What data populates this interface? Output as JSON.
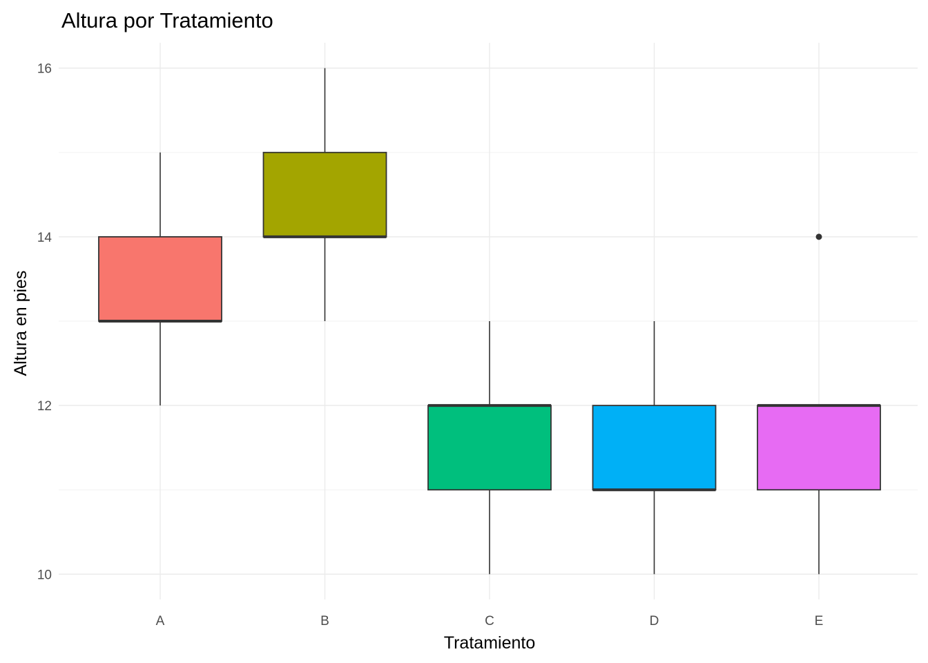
{
  "chart_data": {
    "type": "box",
    "title": "Altura por Tratamiento",
    "xlabel": "Tratamiento",
    "ylabel": "Altura en pies",
    "ylim": [
      9.7,
      16.3
    ],
    "y_ticks": [
      "10",
      "12",
      "14",
      "16"
    ],
    "grid": true,
    "legend": "none",
    "categories": [
      "A",
      "B",
      "C",
      "D",
      "E"
    ],
    "boxes": [
      {
        "category": "A",
        "min": 12,
        "q1": 13,
        "median": 13,
        "q3": 14,
        "max": 15,
        "outliers": [],
        "color": "#F8766D"
      },
      {
        "category": "B",
        "min": 13,
        "q1": 14,
        "median": 14,
        "q3": 15,
        "max": 16,
        "outliers": [],
        "color": "#A3A500"
      },
      {
        "category": "C",
        "min": 10,
        "q1": 11,
        "median": 12,
        "q3": 12,
        "max": 13,
        "outliers": [],
        "color": "#00BF7D"
      },
      {
        "category": "D",
        "min": 10,
        "q1": 11,
        "median": 11,
        "q3": 12,
        "max": 13,
        "outliers": [],
        "color": "#00B0F6"
      },
      {
        "category": "E",
        "min": 10,
        "q1": 11,
        "median": 12,
        "q3": 12,
        "max": 12,
        "outliers": [
          14
        ],
        "color": "#E76BF3"
      }
    ]
  }
}
